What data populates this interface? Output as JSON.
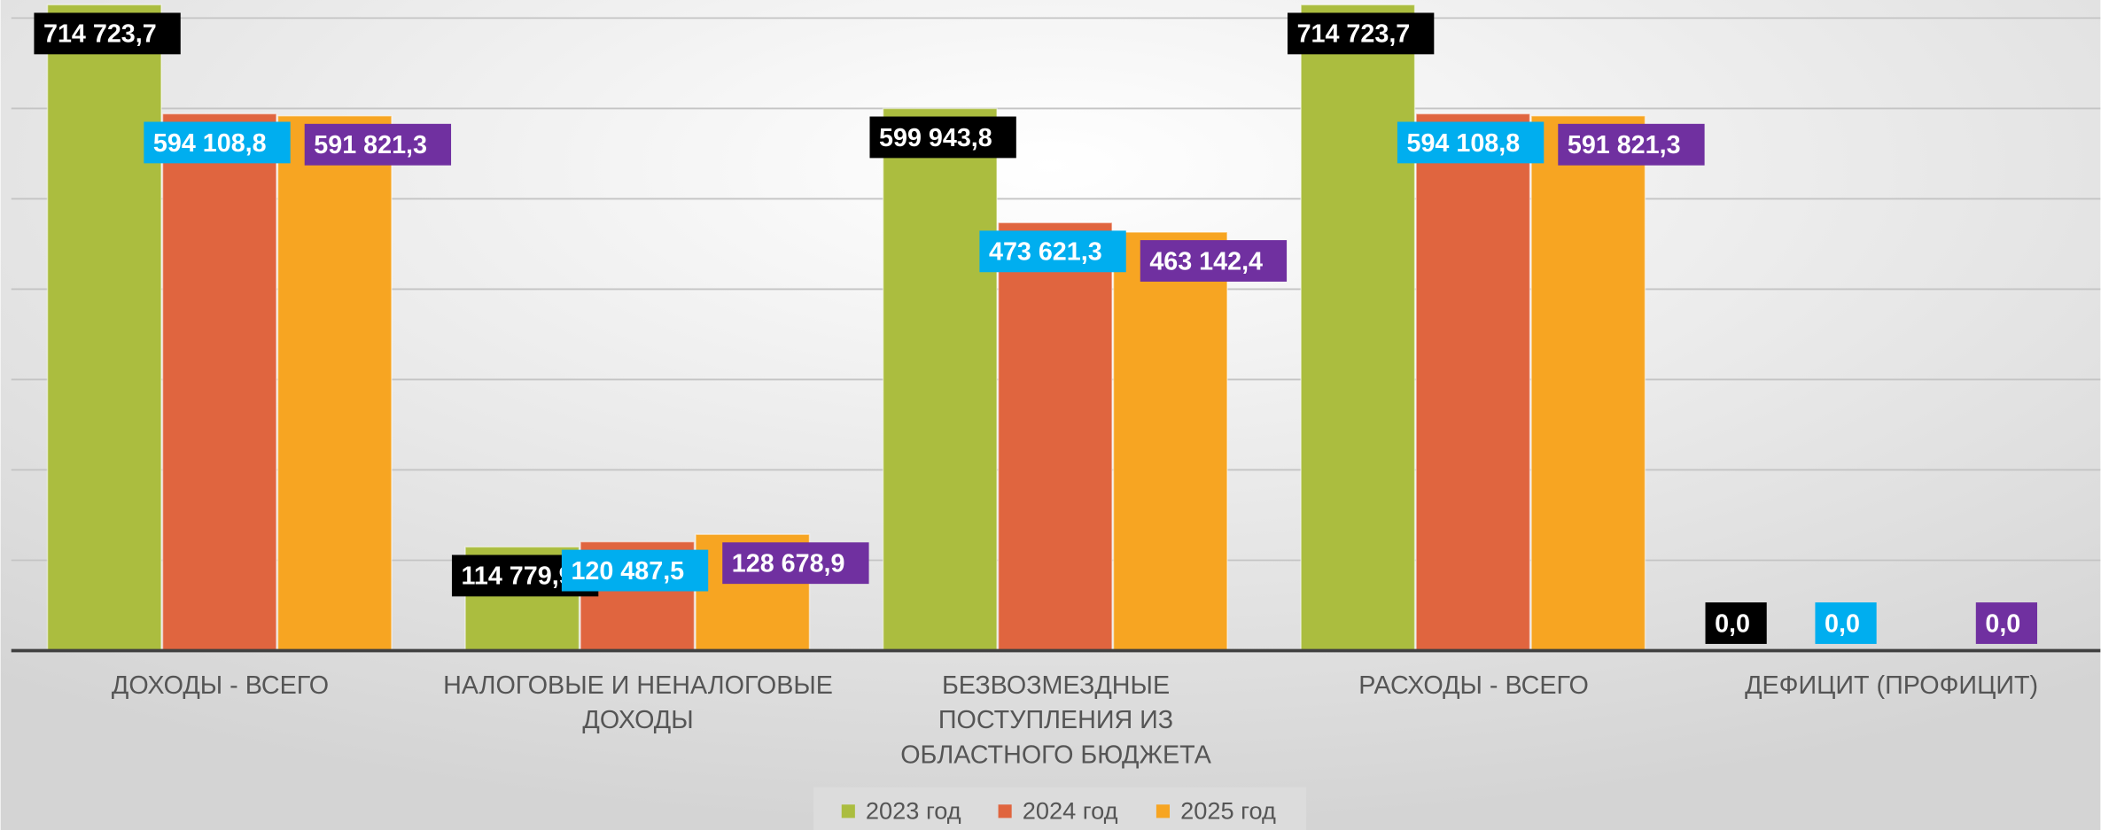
{
  "chart_data": {
    "type": "bar",
    "categories": [
      "ДОХОДЫ - ВСЕГО",
      "НАЛОГОВЫЕ И НЕНАЛОГОВЫЕ ДОХОДЫ",
      "БЕЗВОЗМЕЗДНЫЕ ПОСТУПЛЕНИЯ ИЗ ОБЛАСТНОГО БЮДЖЕТА",
      "РАСХОДЫ - ВСЕГО",
      "ДЕФИЦИТ (ПРОФИЦИТ)"
    ],
    "series": [
      {
        "name": "2023 год",
        "color": "#abbd3f",
        "label_color": "#000000",
        "values": [
          714723.7,
          114779.9,
          599943.8,
          714723.7,
          0.0
        ],
        "value_labels": [
          "714 723,7",
          "114 779,9",
          "599 943,8",
          "714 723,7",
          "0,0"
        ]
      },
      {
        "name": "2024 год",
        "color": "#e0653f",
        "label_color": "#00aeef",
        "values": [
          594108.8,
          120487.5,
          473621.3,
          594108.8,
          0.0
        ],
        "value_labels": [
          "594 108,8",
          "120 487,5",
          "473 621,3",
          "594 108,8",
          "0,0"
        ]
      },
      {
        "name": "2025 год",
        "color": "#f7a522",
        "label_color": "#7030a0",
        "values": [
          591821.3,
          128678.9,
          463142.4,
          591821.3,
          0.0
        ],
        "value_labels": [
          "591 821,3",
          "128 678,9",
          "463 142,4",
          "591 821,3",
          "0,0"
        ]
      }
    ],
    "ylim": [
      0,
      720000
    ],
    "yticks": [
      0,
      100000,
      200000,
      300000,
      400000,
      500000,
      600000,
      700000
    ],
    "grid": true,
    "legend": "bottom"
  }
}
